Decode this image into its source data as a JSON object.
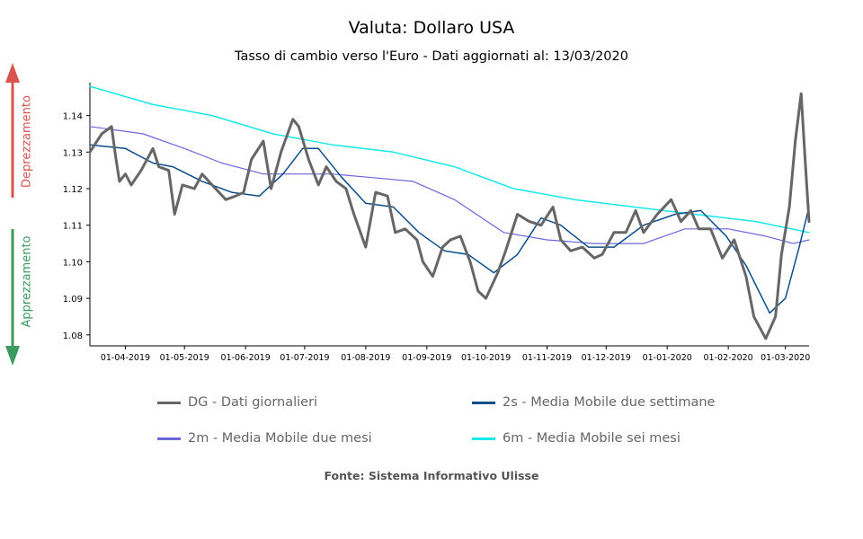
{
  "title": "Valuta: Dollaro USA",
  "subtitle": "Tasso di cambio verso l'Euro - Dati aggiornati al: 13/03/2020",
  "side_labels": {
    "depreciation": "Deprezzamento",
    "appreciation": "Apprezzamento",
    "depreciation_color": "#d9534f",
    "appreciation_color": "#3d9a5f"
  },
  "source": "Fonte: Sistema Informativo Ulisse",
  "chart_data": {
    "type": "line",
    "x_ticks": [
      "01-04-2019",
      "01-05-2019",
      "01-06-2019",
      "01-07-2019",
      "01-08-2019",
      "01-09-2019",
      "01-10-2019",
      "01-11-2019",
      "01-12-2019",
      "01-01-2020",
      "01-02-2020",
      "01-03-2020"
    ],
    "y_ticks": [
      "1.08",
      "1.09",
      "1.10",
      "1.11",
      "1.12",
      "1.13",
      "1.14"
    ],
    "ylim": [
      1.077,
      1.149
    ],
    "x_range": [
      "2019-03-14",
      "2020-03-13"
    ],
    "grid": false,
    "legend_position": "bottom",
    "series": [
      {
        "name": "DG - Dati giornalieri",
        "color": "#666666",
        "points": [
          [
            "2019-03-14",
            1.13
          ],
          [
            "2019-03-20",
            1.135
          ],
          [
            "2019-03-25",
            1.137
          ],
          [
            "2019-03-27",
            1.129
          ],
          [
            "2019-03-29",
            1.122
          ],
          [
            "2019-04-01",
            1.124
          ],
          [
            "2019-04-04",
            1.121
          ],
          [
            "2019-04-09",
            1.125
          ],
          [
            "2019-04-15",
            1.131
          ],
          [
            "2019-04-18",
            1.126
          ],
          [
            "2019-04-23",
            1.125
          ],
          [
            "2019-04-26",
            1.113
          ],
          [
            "2019-04-30",
            1.121
          ],
          [
            "2019-05-06",
            1.12
          ],
          [
            "2019-05-10",
            1.124
          ],
          [
            "2019-05-15",
            1.121
          ],
          [
            "2019-05-22",
            1.117
          ],
          [
            "2019-05-27",
            1.118
          ],
          [
            "2019-05-31",
            1.119
          ],
          [
            "2019-06-04",
            1.128
          ],
          [
            "2019-06-10",
            1.133
          ],
          [
            "2019-06-14",
            1.12
          ],
          [
            "2019-06-19",
            1.13
          ],
          [
            "2019-06-25",
            1.139
          ],
          [
            "2019-06-28",
            1.137
          ],
          [
            "2019-07-03",
            1.128
          ],
          [
            "2019-07-08",
            1.121
          ],
          [
            "2019-07-12",
            1.126
          ],
          [
            "2019-07-17",
            1.122
          ],
          [
            "2019-07-22",
            1.12
          ],
          [
            "2019-07-26",
            1.113
          ],
          [
            "2019-08-01",
            1.104
          ],
          [
            "2019-08-06",
            1.119
          ],
          [
            "2019-08-12",
            1.118
          ],
          [
            "2019-08-16",
            1.108
          ],
          [
            "2019-08-21",
            1.109
          ],
          [
            "2019-08-27",
            1.106
          ],
          [
            "2019-08-30",
            1.1
          ],
          [
            "2019-09-04",
            1.096
          ],
          [
            "2019-09-09",
            1.104
          ],
          [
            "2019-09-13",
            1.106
          ],
          [
            "2019-09-18",
            1.107
          ],
          [
            "2019-09-23",
            1.1
          ],
          [
            "2019-09-27",
            1.092
          ],
          [
            "2019-10-01",
            1.09
          ],
          [
            "2019-10-07",
            1.097
          ],
          [
            "2019-10-11",
            1.103
          ],
          [
            "2019-10-17",
            1.113
          ],
          [
            "2019-10-23",
            1.111
          ],
          [
            "2019-10-29",
            1.11
          ],
          [
            "2019-11-04",
            1.115
          ],
          [
            "2019-11-08",
            1.106
          ],
          [
            "2019-11-13",
            1.103
          ],
          [
            "2019-11-19",
            1.104
          ],
          [
            "2019-11-25",
            1.101
          ],
          [
            "2019-11-29",
            1.102
          ],
          [
            "2019-12-05",
            1.108
          ],
          [
            "2019-12-11",
            1.108
          ],
          [
            "2019-12-16",
            1.114
          ],
          [
            "2019-12-20",
            1.108
          ],
          [
            "2019-12-27",
            1.113
          ],
          [
            "2020-01-03",
            1.117
          ],
          [
            "2020-01-08",
            1.111
          ],
          [
            "2020-01-13",
            1.114
          ],
          [
            "2020-01-17",
            1.109
          ],
          [
            "2020-01-23",
            1.109
          ],
          [
            "2020-01-29",
            1.101
          ],
          [
            "2020-02-04",
            1.106
          ],
          [
            "2020-02-10",
            1.096
          ],
          [
            "2020-02-14",
            1.085
          ],
          [
            "2020-02-20",
            1.079
          ],
          [
            "2020-02-25",
            1.085
          ],
          [
            "2020-02-28",
            1.102
          ],
          [
            "2020-03-03",
            1.115
          ],
          [
            "2020-03-06",
            1.133
          ],
          [
            "2020-03-09",
            1.146
          ],
          [
            "2020-03-11",
            1.128
          ],
          [
            "2020-03-13",
            1.111
          ]
        ]
      },
      {
        "name": "2s - Media Mobile due settimane",
        "color": "#0b4d8a",
        "points": [
          [
            "2019-03-14",
            1.132
          ],
          [
            "2019-04-01",
            1.131
          ],
          [
            "2019-04-15",
            1.127
          ],
          [
            "2019-04-25",
            1.126
          ],
          [
            "2019-05-10",
            1.122
          ],
          [
            "2019-05-25",
            1.119
          ],
          [
            "2019-06-08",
            1.118
          ],
          [
            "2019-06-20",
            1.124
          ],
          [
            "2019-06-30",
            1.131
          ],
          [
            "2019-07-08",
            1.131
          ],
          [
            "2019-07-20",
            1.123
          ],
          [
            "2019-08-01",
            1.116
          ],
          [
            "2019-08-15",
            1.115
          ],
          [
            "2019-08-28",
            1.108
          ],
          [
            "2019-09-10",
            1.103
          ],
          [
            "2019-09-22",
            1.102
          ],
          [
            "2019-10-05",
            1.097
          ],
          [
            "2019-10-17",
            1.102
          ],
          [
            "2019-10-29",
            1.112
          ],
          [
            "2019-11-08",
            1.11
          ],
          [
            "2019-11-22",
            1.104
          ],
          [
            "2019-12-05",
            1.104
          ],
          [
            "2019-12-20",
            1.11
          ],
          [
            "2020-01-05",
            1.113
          ],
          [
            "2020-01-18",
            1.114
          ],
          [
            "2020-01-31",
            1.107
          ],
          [
            "2020-02-10",
            1.099
          ],
          [
            "2020-02-22",
            1.086
          ],
          [
            "2020-03-01",
            1.09
          ],
          [
            "2020-03-08",
            1.104
          ],
          [
            "2020-03-13",
            1.115
          ]
        ]
      },
      {
        "name": "2m - Media Mobile due mesi",
        "color": "#6a67dd",
        "points": [
          [
            "2019-03-14",
            1.137
          ],
          [
            "2019-04-10",
            1.135
          ],
          [
            "2019-05-01",
            1.131
          ],
          [
            "2019-05-20",
            1.127
          ],
          [
            "2019-06-10",
            1.124
          ],
          [
            "2019-06-30",
            1.124
          ],
          [
            "2019-07-15",
            1.124
          ],
          [
            "2019-08-05",
            1.123
          ],
          [
            "2019-08-25",
            1.122
          ],
          [
            "2019-09-15",
            1.117
          ],
          [
            "2019-10-10",
            1.108
          ],
          [
            "2019-11-01",
            1.106
          ],
          [
            "2019-11-25",
            1.105
          ],
          [
            "2019-12-20",
            1.105
          ],
          [
            "2020-01-10",
            1.109
          ],
          [
            "2020-02-01",
            1.109
          ],
          [
            "2020-02-20",
            1.107
          ],
          [
            "2020-03-05",
            1.105
          ],
          [
            "2020-03-13",
            1.106
          ]
        ]
      },
      {
        "name": "6m - Media Mobile sei mesi",
        "color": "#19e8e8",
        "points": [
          [
            "2019-03-14",
            1.148
          ],
          [
            "2019-04-15",
            1.143
          ],
          [
            "2019-05-15",
            1.14
          ],
          [
            "2019-06-15",
            1.135
          ],
          [
            "2019-07-15",
            1.132
          ],
          [
            "2019-08-15",
            1.13
          ],
          [
            "2019-09-15",
            1.126
          ],
          [
            "2019-10-15",
            1.12
          ],
          [
            "2019-11-15",
            1.117
          ],
          [
            "2019-12-15",
            1.115
          ],
          [
            "2020-01-15",
            1.113
          ],
          [
            "2020-02-15",
            1.111
          ],
          [
            "2020-03-13",
            1.108
          ]
        ]
      }
    ]
  }
}
